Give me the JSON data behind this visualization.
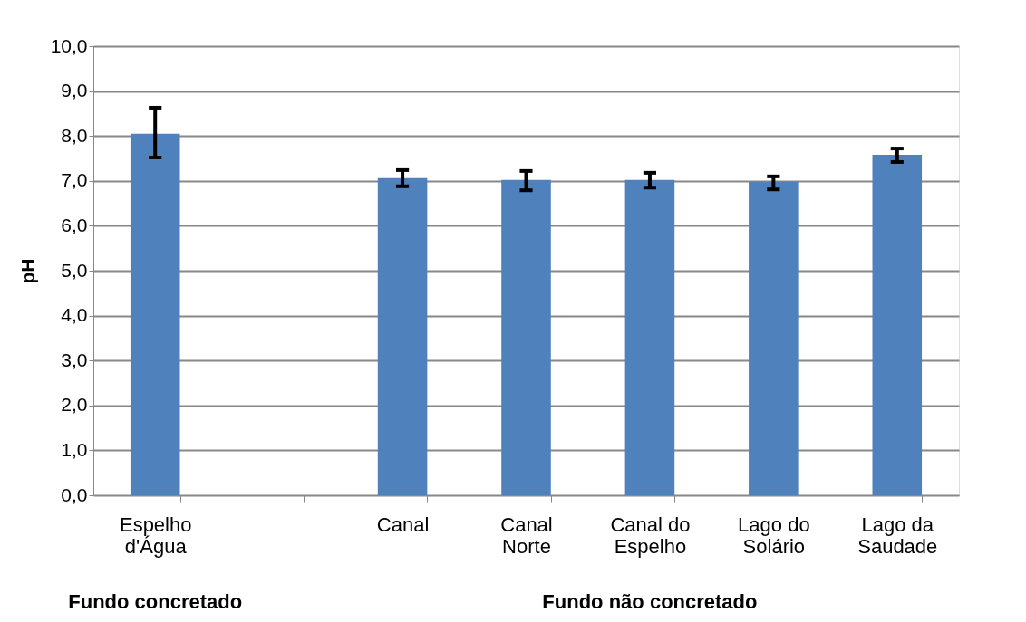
{
  "chart_data": {
    "type": "bar",
    "ylabel": "pH",
    "categories": [
      "Espelho\nd'Água",
      null,
      "Canal",
      "Canal\nNorte",
      "Canal do\nEspelho",
      "Lago do\nSolário",
      "Lago da\nSaudade"
    ],
    "values": [
      8.05,
      null,
      7.06,
      7.02,
      7.02,
      6.98,
      7.58
    ],
    "errors": [
      [
        7.52,
        8.63
      ],
      null,
      [
        6.88,
        7.24
      ],
      [
        6.79,
        7.22
      ],
      [
        6.85,
        7.18
      ],
      [
        6.81,
        7.1
      ],
      [
        7.42,
        7.72
      ]
    ],
    "color": "#4f81bd",
    "ylim": [
      0,
      10
    ],
    "yticks": [
      {
        "value": 0,
        "label": "0,0"
      },
      {
        "value": 1,
        "label": "1,0"
      },
      {
        "value": 2,
        "label": "2,0"
      },
      {
        "value": 3,
        "label": "3,0"
      },
      {
        "value": 4,
        "label": "4,0"
      },
      {
        "value": 5,
        "label": "5,0"
      },
      {
        "value": 6,
        "label": "6,0"
      },
      {
        "value": 7,
        "label": "7,0"
      },
      {
        "value": 8,
        "label": "8,0"
      },
      {
        "value": 9,
        "label": "9,0"
      },
      {
        "value": 10,
        "label": "10,0"
      }
    ],
    "grid": "y",
    "annotations": [
      "Fundo concretado",
      "Fundo não concretado"
    ]
  }
}
